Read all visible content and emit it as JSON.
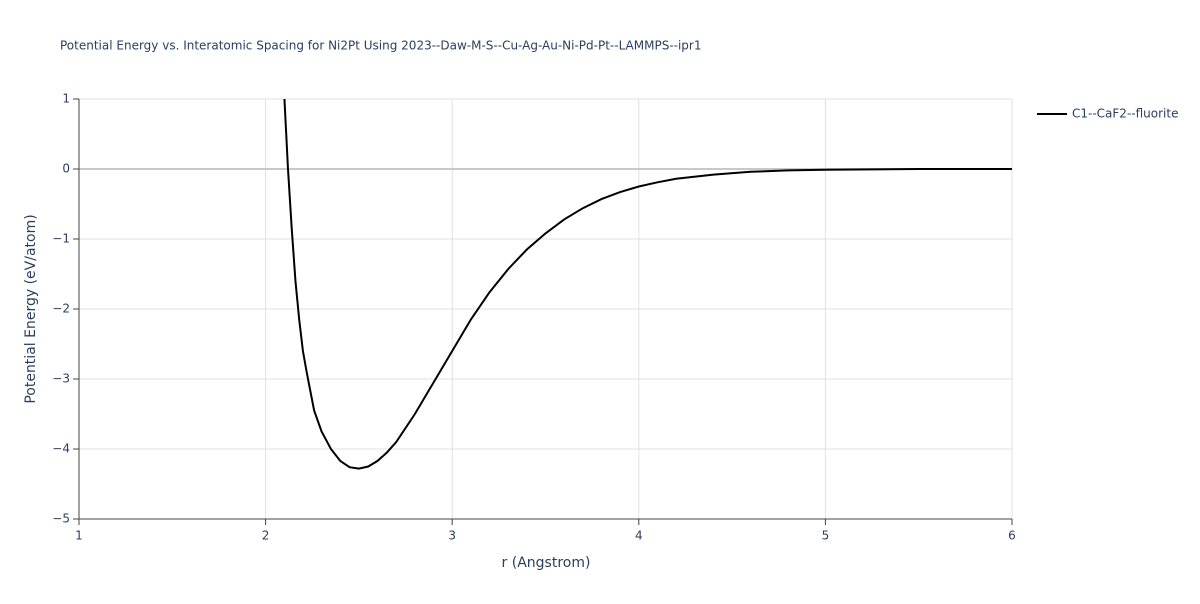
{
  "chart_data": {
    "type": "line",
    "title": "Potential Energy vs. Interatomic Spacing for Ni2Pt Using 2023--Daw-M-S--Cu-Ag-Au-Ni-Pd-Pt--LAMMPS--ipr1",
    "x_label": "r (Angstrom)",
    "y_label": "Potential Energy (eV/atom)",
    "xlim": [
      1,
      6
    ],
    "ylim": [
      -5,
      1
    ],
    "xticks": [
      1,
      2,
      3,
      4,
      5,
      6
    ],
    "yticks": [
      1,
      0,
      {
        "value": -1,
        "label": "−1"
      },
      {
        "value": -2,
        "label": "−2"
      },
      {
        "value": -3,
        "label": "−3"
      },
      {
        "value": -4,
        "label": "−4"
      },
      {
        "value": -5,
        "label": "−5"
      }
    ],
    "grid": true,
    "legend": "right",
    "series": [
      {
        "name": "C1--CaF2--fluorite",
        "color": "#000000",
        "x": [
          2.1,
          2.12,
          2.14,
          2.16,
          2.18,
          2.2,
          2.22,
          2.26,
          2.3,
          2.35,
          2.4,
          2.45,
          2.5,
          2.55,
          2.6,
          2.65,
          2.7,
          2.8,
          2.9,
          3.0,
          3.1,
          3.2,
          3.3,
          3.4,
          3.5,
          3.6,
          3.7,
          3.8,
          3.9,
          4.0,
          4.1,
          4.2,
          4.4,
          4.6,
          4.8,
          5.0,
          5.5,
          6.0
        ],
        "values": [
          1.05,
          0.0,
          -0.85,
          -1.6,
          -2.15,
          -2.6,
          -2.9,
          -3.45,
          -3.75,
          -4.0,
          -4.17,
          -4.26,
          -4.28,
          -4.25,
          -4.17,
          -4.05,
          -3.9,
          -3.5,
          -3.05,
          -2.6,
          -2.15,
          -1.76,
          -1.43,
          -1.15,
          -0.92,
          -0.72,
          -0.56,
          -0.43,
          -0.33,
          -0.25,
          -0.19,
          -0.14,
          -0.08,
          -0.04,
          -0.02,
          -0.01,
          0,
          0
        ]
      }
    ]
  }
}
